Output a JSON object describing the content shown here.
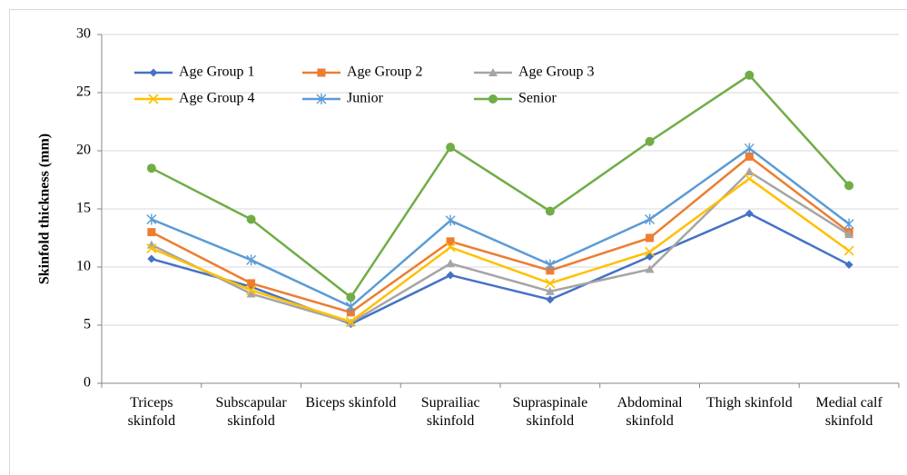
{
  "chart_data": {
    "type": "line",
    "y_label": "Skinfold thickness (mm)",
    "categories": [
      "Triceps skinfold",
      "Subscapular skinfold",
      "Biceps skinfold",
      "Suprailiac skinfold",
      "Supraspinale skinfold",
      "Abdominal skinfold",
      "Thigh skinfold",
      "Medial calf skinfold"
    ],
    "ylim": [
      0,
      30
    ],
    "yticks": [
      0,
      5,
      10,
      15,
      20,
      25,
      30
    ],
    "grid": true,
    "legend": "top-left",
    "series": [
      {
        "name": "Age Group 1",
        "color": "#4472c4",
        "marker": "diamond",
        "values": [
          10.7,
          8.3,
          5.1,
          9.3,
          7.2,
          10.9,
          14.6,
          10.2
        ]
      },
      {
        "name": "Age Group 2",
        "color": "#ed7d31",
        "marker": "square",
        "values": [
          13.0,
          8.6,
          6.1,
          12.2,
          9.7,
          12.5,
          19.5,
          13.0
        ]
      },
      {
        "name": "Age Group 3",
        "color": "#a5a5a5",
        "marker": "triangle",
        "values": [
          11.9,
          7.7,
          5.2,
          10.3,
          7.9,
          9.8,
          18.2,
          12.8
        ]
      },
      {
        "name": "Age Group 4",
        "color": "#ffc000",
        "marker": "x",
        "values": [
          11.6,
          8.0,
          5.3,
          11.7,
          8.6,
          11.3,
          17.6,
          11.4
        ]
      },
      {
        "name": "Junior",
        "color": "#5b9bd5",
        "marker": "asterisk",
        "values": [
          14.1,
          10.6,
          6.6,
          14.0,
          10.2,
          14.1,
          20.2,
          13.7
        ]
      },
      {
        "name": "Senior",
        "color": "#70ad47",
        "marker": "circle",
        "values": [
          18.5,
          14.1,
          7.4,
          20.3,
          14.8,
          20.8,
          26.5,
          17.0
        ]
      }
    ]
  }
}
